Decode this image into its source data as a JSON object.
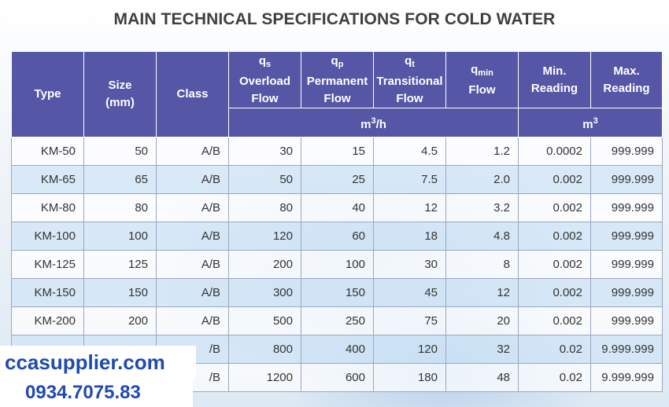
{
  "title": "MAIN TECHNICAL SPECIFICATIONS FOR COLD WATER",
  "headers": {
    "type": "Type",
    "size_line1": "Size",
    "size_line2": "(mm)",
    "class": "Class",
    "qs_symbol": "q",
    "qs_sub": "s",
    "qs_line1": "Overload",
    "qs_line2": "Flow",
    "qp_symbol": "q",
    "qp_sub": "p",
    "qp_line1": "Permanent",
    "qp_line2": "Flow",
    "qt_symbol": "q",
    "qt_sub": "t",
    "qt_line1": "Transitional",
    "qt_line2": "Flow",
    "qmin_symbol": "q",
    "qmin_sub": "min",
    "qmin_line1": "Flow",
    "min_line1": "Min.",
    "min_line2": "Reading",
    "max_line1": "Max.",
    "max_line2": "Reading",
    "flow_unit_base": "m",
    "flow_unit_sup": "3",
    "flow_unit_tail": "/h",
    "reading_unit_base": "m",
    "reading_unit_sup": "3"
  },
  "rows": [
    {
      "type": "KM-50",
      "size": "50",
      "class": "A/B",
      "qs": "30",
      "qp": "15",
      "qt": "4.5",
      "qmin": "1.2",
      "min": "0.0002",
      "max": "999.999"
    },
    {
      "type": "KM-65",
      "size": "65",
      "class": "A/B",
      "qs": "50",
      "qp": "25",
      "qt": "7.5",
      "qmin": "2.0",
      "min": "0.002",
      "max": "999.999"
    },
    {
      "type": "KM-80",
      "size": "80",
      "class": "A/B",
      "qs": "80",
      "qp": "40",
      "qt": "12",
      "qmin": "3.2",
      "min": "0.002",
      "max": "999.999"
    },
    {
      "type": "KM-100",
      "size": "100",
      "class": "A/B",
      "qs": "120",
      "qp": "60",
      "qt": "18",
      "qmin": "4.8",
      "min": "0.002",
      "max": "999.999"
    },
    {
      "type": "KM-125",
      "size": "125",
      "class": "A/B",
      "qs": "200",
      "qp": "100",
      "qt": "30",
      "qmin": "8",
      "min": "0.002",
      "max": "999.999"
    },
    {
      "type": "KM-150",
      "size": "150",
      "class": "A/B",
      "qs": "300",
      "qp": "150",
      "qt": "45",
      "qmin": "12",
      "min": "0.002",
      "max": "999.999"
    },
    {
      "type": "KM-200",
      "size": "200",
      "class": "A/B",
      "qs": "500",
      "qp": "250",
      "qt": "75",
      "qmin": "20",
      "min": "0.002",
      "max": "999.999"
    },
    {
      "type": "",
      "size": "",
      "class": "/B",
      "qs": "800",
      "qp": "400",
      "qt": "120",
      "qmin": "32",
      "min": "0.02",
      "max": "9.999.999"
    },
    {
      "type": "",
      "size": "",
      "class": "/B",
      "qs": "1200",
      "qp": "600",
      "qt": "180",
      "qmin": "48",
      "min": "0.02",
      "max": "9.999.999"
    }
  ],
  "watermark": {
    "site": "ccasupplier.com",
    "phone": "0934.7075.83"
  },
  "colors": {
    "header_bg": "#5556a6",
    "row_alt": "#d0e4f6",
    "watermark_text": "#1f4ab0"
  }
}
